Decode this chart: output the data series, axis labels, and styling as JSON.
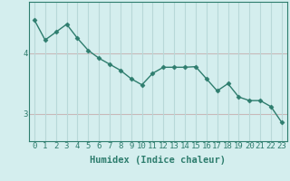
{
  "x": [
    0,
    1,
    2,
    3,
    4,
    5,
    6,
    7,
    8,
    9,
    10,
    11,
    12,
    13,
    14,
    15,
    16,
    17,
    18,
    19,
    20,
    21,
    22,
    23
  ],
  "y": [
    4.55,
    4.22,
    4.35,
    4.48,
    4.25,
    4.05,
    3.92,
    3.82,
    3.72,
    3.58,
    3.48,
    3.67,
    3.77,
    3.77,
    3.77,
    3.78,
    3.58,
    3.38,
    3.5,
    3.28,
    3.22,
    3.22,
    3.12,
    2.86
  ],
  "line_color": "#2e7d6e",
  "marker": "D",
  "marker_size": 2.5,
  "background_color": "#d4eeee",
  "grid_color_h": "#c8b8b8",
  "grid_color_v": "#b8d8d8",
  "xlabel": "Humidex (Indice chaleur)",
  "ylim": [
    2.55,
    4.85
  ],
  "xlim": [
    -0.5,
    23.5
  ],
  "yticks": [
    3,
    4
  ],
  "xtick_labels": [
    "0",
    "1",
    "2",
    "3",
    "4",
    "5",
    "6",
    "7",
    "8",
    "9",
    "10",
    "11",
    "12",
    "13",
    "14",
    "15",
    "16",
    "17",
    "18",
    "19",
    "20",
    "21",
    "22",
    "23"
  ],
  "xlabel_fontsize": 7.5,
  "tick_fontsize": 6.5,
  "line_width": 1.0
}
